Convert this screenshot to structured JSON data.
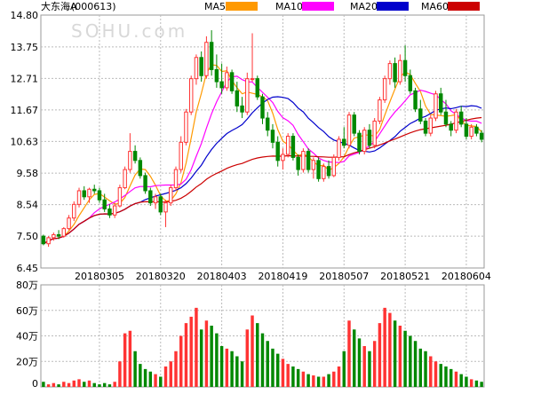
{
  "stock": {
    "name": "大东海A",
    "code": "(000613)"
  },
  "watermark": "SOHU.com",
  "legend": [
    {
      "label": "MA5",
      "color": "#ff9900"
    },
    {
      "label": "MA10",
      "color": "#ff00ff"
    },
    {
      "label": "MA20",
      "color": "#0000cc"
    },
    {
      "label": "MA60",
      "color": "#cc0000"
    }
  ],
  "colors": {
    "up": "#ff3333",
    "down": "#008800",
    "grid": "#bbbbbb"
  },
  "chart_data": [
    {
      "type": "candlestick",
      "title": "大东海A (000613)",
      "y_ticks": [
        "14.80",
        "13.75",
        "12.71",
        "11.67",
        "10.63",
        "9.58",
        "8.54",
        "7.50",
        "6.45"
      ],
      "ylim": [
        6.45,
        14.8
      ],
      "x_ticks": [
        "20180305",
        "20180320",
        "20180403",
        "20180419",
        "20180507",
        "20180521",
        "20180604"
      ],
      "x_tick_index": [
        11,
        23,
        35,
        47,
        59,
        71,
        83
      ],
      "grid": true,
      "ohlc": [
        [
          7.5,
          7.55,
          7.2,
          7.25
        ],
        [
          7.25,
          7.5,
          7.15,
          7.45
        ],
        [
          7.45,
          7.62,
          7.35,
          7.55
        ],
        [
          7.55,
          7.7,
          7.4,
          7.5
        ],
        [
          7.5,
          7.8,
          7.45,
          7.75
        ],
        [
          7.75,
          8.2,
          7.7,
          8.1
        ],
        [
          8.1,
          8.65,
          8.0,
          8.55
        ],
        [
          8.55,
          9.1,
          8.45,
          9.0
        ],
        [
          9.0,
          9.15,
          8.7,
          8.8
        ],
        [
          8.8,
          9.1,
          8.6,
          9.05
        ],
        [
          9.05,
          9.2,
          8.9,
          9.0
        ],
        [
          9.0,
          9.1,
          8.6,
          8.7
        ],
        [
          8.7,
          8.9,
          8.3,
          8.4
        ],
        [
          8.4,
          8.55,
          8.1,
          8.2
        ],
        [
          8.2,
          8.6,
          8.1,
          8.5
        ],
        [
          8.5,
          9.2,
          8.45,
          9.1
        ],
        [
          9.1,
          9.8,
          9.05,
          9.7
        ],
        [
          9.7,
          10.9,
          9.6,
          10.3
        ],
        [
          10.3,
          10.5,
          9.9,
          10.0
        ],
        [
          10.0,
          10.1,
          9.4,
          9.5
        ],
        [
          9.5,
          9.6,
          8.9,
          9.0
        ],
        [
          9.0,
          9.1,
          8.5,
          8.6
        ],
        [
          8.6,
          8.9,
          8.4,
          8.8
        ],
        [
          8.8,
          8.9,
          8.2,
          8.3
        ],
        [
          8.3,
          8.7,
          7.8,
          8.6
        ],
        [
          8.6,
          9.2,
          8.5,
          9.1
        ],
        [
          9.1,
          9.8,
          9.0,
          9.7
        ],
        [
          9.7,
          10.8,
          9.6,
          10.6
        ],
        [
          10.6,
          11.7,
          10.5,
          11.6
        ],
        [
          11.6,
          12.8,
          11.5,
          12.7
        ],
        [
          12.7,
          13.5,
          12.5,
          13.4
        ],
        [
          13.4,
          13.6,
          12.6,
          12.8
        ],
        [
          12.8,
          14.1,
          12.7,
          13.9
        ],
        [
          13.9,
          14.3,
          12.8,
          13.0
        ],
        [
          13.0,
          13.5,
          12.4,
          12.6
        ],
        [
          12.6,
          13.2,
          12.2,
          12.4
        ],
        [
          12.4,
          13.1,
          12.3,
          12.9
        ],
        [
          12.9,
          13.0,
          12.2,
          12.3
        ],
        [
          12.3,
          12.6,
          11.6,
          11.8
        ],
        [
          11.8,
          12.1,
          11.4,
          11.6
        ],
        [
          11.6,
          12.9,
          11.5,
          12.7
        ],
        [
          12.7,
          14.2,
          12.6,
          12.7
        ],
        [
          12.7,
          12.8,
          12.0,
          12.1
        ],
        [
          12.1,
          12.2,
          11.2,
          11.4
        ],
        [
          11.4,
          11.6,
          10.8,
          11.0
        ],
        [
          11.0,
          11.2,
          10.4,
          10.6
        ],
        [
          10.6,
          10.8,
          9.8,
          10.0
        ],
        [
          10.0,
          10.4,
          9.7,
          10.2
        ],
        [
          10.2,
          10.9,
          10.1,
          10.8
        ],
        [
          10.8,
          10.9,
          10.0,
          10.1
        ],
        [
          10.1,
          10.2,
          9.5,
          9.7
        ],
        [
          9.7,
          10.4,
          9.6,
          10.3
        ],
        [
          10.3,
          10.4,
          9.6,
          9.7
        ],
        [
          9.7,
          10.1,
          9.4,
          10.0
        ],
        [
          10.0,
          10.1,
          9.3,
          9.4
        ],
        [
          9.4,
          9.9,
          9.3,
          9.8
        ],
        [
          9.8,
          10.0,
          9.4,
          9.5
        ],
        [
          9.5,
          10.2,
          9.45,
          10.1
        ],
        [
          10.1,
          10.8,
          10.0,
          10.7
        ],
        [
          10.7,
          11.1,
          10.4,
          10.5
        ],
        [
          10.5,
          11.6,
          10.4,
          11.5
        ],
        [
          11.5,
          11.6,
          10.8,
          10.9
        ],
        [
          10.9,
          11.0,
          10.2,
          10.3
        ],
        [
          10.3,
          11.1,
          10.2,
          11.0
        ],
        [
          11.0,
          11.2,
          10.4,
          10.5
        ],
        [
          10.5,
          11.4,
          10.4,
          11.3
        ],
        [
          11.3,
          12.1,
          11.2,
          12.0
        ],
        [
          12.0,
          12.8,
          11.9,
          12.7
        ],
        [
          12.7,
          13.3,
          12.5,
          13.2
        ],
        [
          13.2,
          13.4,
          12.4,
          12.6
        ],
        [
          12.6,
          13.5,
          12.5,
          13.3
        ],
        [
          13.3,
          13.8,
          12.6,
          12.8
        ],
        [
          12.8,
          13.0,
          12.2,
          12.3
        ],
        [
          12.3,
          12.4,
          11.6,
          11.7
        ],
        [
          11.7,
          12.0,
          11.2,
          11.3
        ],
        [
          11.3,
          11.4,
          10.8,
          10.9
        ],
        [
          10.9,
          11.5,
          10.8,
          11.4
        ],
        [
          11.4,
          12.3,
          11.3,
          12.2
        ],
        [
          12.2,
          12.4,
          11.5,
          11.6
        ],
        [
          11.6,
          12.0,
          11.1,
          11.2
        ],
        [
          11.2,
          11.3,
          10.8,
          11.0
        ],
        [
          11.0,
          11.7,
          10.9,
          11.6
        ],
        [
          11.6,
          11.8,
          11.1,
          11.2
        ],
        [
          11.2,
          11.4,
          10.7,
          10.8
        ],
        [
          10.8,
          11.2,
          10.7,
          11.1
        ],
        [
          11.1,
          11.2,
          10.8,
          10.9
        ],
        [
          10.9,
          11.0,
          10.6,
          10.7
        ]
      ]
    },
    {
      "type": "bar",
      "title": "",
      "y_ticks": [
        "80万",
        "60万",
        "40万",
        "20万",
        "0"
      ],
      "ylim": [
        0,
        80
      ],
      "grid": true,
      "values": [
        4,
        2,
        3,
        2,
        4,
        3,
        5,
        6,
        4,
        5,
        3,
        2,
        3,
        2,
        4,
        20,
        42,
        44,
        28,
        18,
        14,
        12,
        10,
        8,
        16,
        20,
        28,
        40,
        50,
        55,
        62,
        45,
        52,
        48,
        42,
        32,
        30,
        28,
        24,
        20,
        45,
        56,
        50,
        42,
        36,
        30,
        26,
        22,
        18,
        16,
        14,
        12,
        10,
        9,
        8,
        8,
        10,
        12,
        16,
        28,
        52,
        45,
        38,
        32,
        28,
        36,
        50,
        62,
        58,
        52,
        48,
        44,
        40,
        36,
        30,
        28,
        24,
        20,
        18,
        16,
        14,
        12,
        10,
        8,
        6,
        5,
        4
      ]
    }
  ]
}
